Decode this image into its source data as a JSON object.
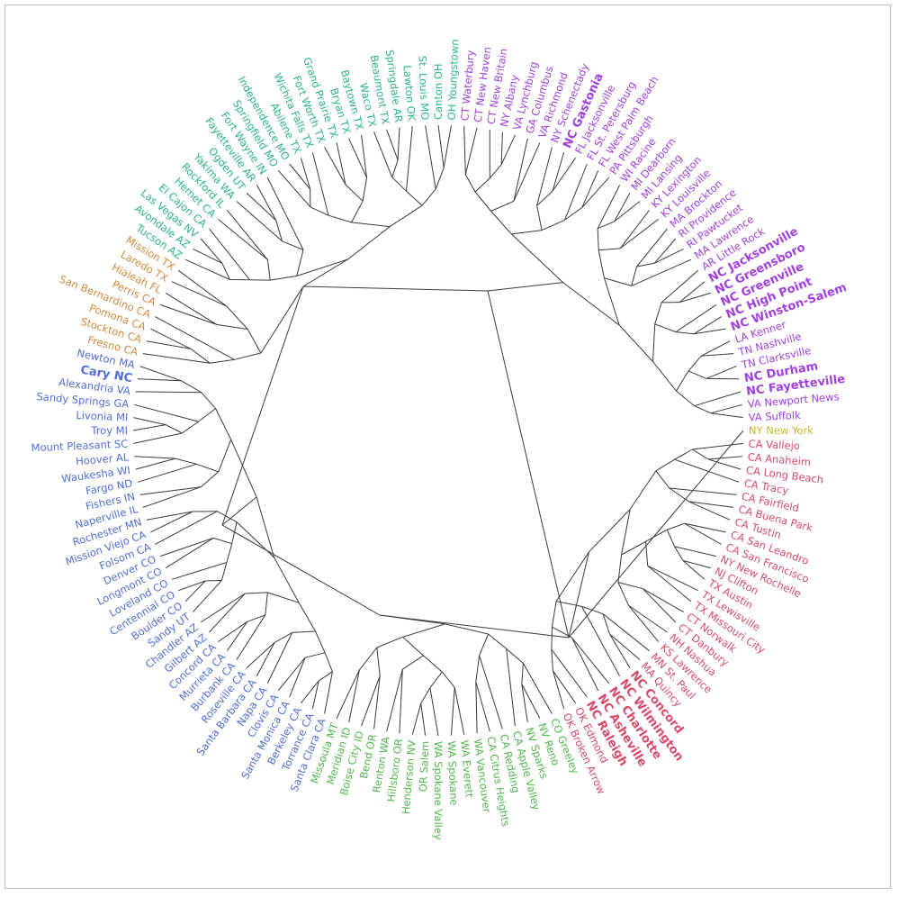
{
  "colors": {
    "teal": "#2bb38b",
    "purple": "#a23fe0",
    "crimson": "#d84a6a",
    "green": "#4fb84a",
    "blue": "#4f6fd6",
    "orange": "#d38a3c",
    "olive": "#c9b52c",
    "edge": "#3a3a3a",
    "border": "#bdbdbd"
  },
  "leaves": [
    {
      "label": "NY New York",
      "color": "olive",
      "bold": false
    },
    {
      "label": "CA Vallejo",
      "color": "crimson",
      "bold": false
    },
    {
      "label": "CA Anaheim",
      "color": "crimson",
      "bold": false
    },
    {
      "label": "CA Long Beach",
      "color": "crimson",
      "bold": false
    },
    {
      "label": "CA Tracy",
      "color": "crimson",
      "bold": false
    },
    {
      "label": "CA Fairfield",
      "color": "crimson",
      "bold": false
    },
    {
      "label": "CA Buena Park",
      "color": "crimson",
      "bold": false
    },
    {
      "label": "CA Tustin",
      "color": "crimson",
      "bold": false
    },
    {
      "label": "CA San Leandro",
      "color": "crimson",
      "bold": false
    },
    {
      "label": "CA San Francisco",
      "color": "crimson",
      "bold": false
    },
    {
      "label": "NY New Rochelle",
      "color": "crimson",
      "bold": false
    },
    {
      "label": "NJ Clifton",
      "color": "crimson",
      "bold": false
    },
    {
      "label": "TX Austin",
      "color": "crimson",
      "bold": false
    },
    {
      "label": "TX Lewisville",
      "color": "crimson",
      "bold": false
    },
    {
      "label": "TX Missouri City",
      "color": "crimson",
      "bold": false
    },
    {
      "label": "CT Norwalk",
      "color": "crimson",
      "bold": false
    },
    {
      "label": "CT Danbury",
      "color": "crimson",
      "bold": false
    },
    {
      "label": "NH Nashua",
      "color": "crimson",
      "bold": false
    },
    {
      "label": "KS Lawrence",
      "color": "crimson",
      "bold": false
    },
    {
      "label": "MN St. Paul",
      "color": "crimson",
      "bold": false
    },
    {
      "label": "MA Quincy",
      "color": "crimson",
      "bold": false
    },
    {
      "label": "NC Concord",
      "color": "crimson",
      "bold": true
    },
    {
      "label": "NC Wilmington",
      "color": "crimson",
      "bold": true
    },
    {
      "label": "NC Charlotte",
      "color": "crimson",
      "bold": true
    },
    {
      "label": "NC Asheville",
      "color": "crimson",
      "bold": true
    },
    {
      "label": "NC Raleigh",
      "color": "crimson",
      "bold": true
    },
    {
      "label": "OK Edmond",
      "color": "crimson",
      "bold": false
    },
    {
      "label": "OK Broken Arrow",
      "color": "crimson",
      "bold": false
    },
    {
      "label": "CO Greeley",
      "color": "green",
      "bold": false
    },
    {
      "label": "NV Reno",
      "color": "green",
      "bold": false
    },
    {
      "label": "NV Sparks",
      "color": "green",
      "bold": false
    },
    {
      "label": "CA Apple Valley",
      "color": "green",
      "bold": false
    },
    {
      "label": "CA Redding",
      "color": "green",
      "bold": false
    },
    {
      "label": "CA Citrus Heights",
      "color": "green",
      "bold": false
    },
    {
      "label": "WA Vancouver",
      "color": "green",
      "bold": false
    },
    {
      "label": "WA Everett",
      "color": "green",
      "bold": false
    },
    {
      "label": "WA Spokane",
      "color": "green",
      "bold": false
    },
    {
      "label": "WA Spokane Valley",
      "color": "green",
      "bold": false
    },
    {
      "label": "OR Salem",
      "color": "green",
      "bold": false
    },
    {
      "label": "Henderson NV",
      "color": "green",
      "bold": false
    },
    {
      "label": "Hillsboro OR",
      "color": "green",
      "bold": false
    },
    {
      "label": "Renton WA",
      "color": "green",
      "bold": false
    },
    {
      "label": "Bend OR",
      "color": "green",
      "bold": false
    },
    {
      "label": "Boise City ID",
      "color": "green",
      "bold": false
    },
    {
      "label": "Meridian ID",
      "color": "green",
      "bold": false
    },
    {
      "label": "Missoula MT",
      "color": "green",
      "bold": false
    },
    {
      "label": "Santa Clara CA",
      "color": "blue",
      "bold": false
    },
    {
      "label": "Torrance CA",
      "color": "blue",
      "bold": false
    },
    {
      "label": "Berkeley CA",
      "color": "blue",
      "bold": false
    },
    {
      "label": "Santa Monica CA",
      "color": "blue",
      "bold": false
    },
    {
      "label": "Clovis CA",
      "color": "blue",
      "bold": false
    },
    {
      "label": "Napa CA",
      "color": "blue",
      "bold": false
    },
    {
      "label": "Santa Barbara CA",
      "color": "blue",
      "bold": false
    },
    {
      "label": "Roseville CA",
      "color": "blue",
      "bold": false
    },
    {
      "label": "Burbank CA",
      "color": "blue",
      "bold": false
    },
    {
      "label": "Murrieta CA",
      "color": "blue",
      "bold": false
    },
    {
      "label": "Concord CA",
      "color": "blue",
      "bold": false
    },
    {
      "label": "Gilbert AZ",
      "color": "blue",
      "bold": false
    },
    {
      "label": "Chandler AZ",
      "color": "blue",
      "bold": false
    },
    {
      "label": "Sandy UT",
      "color": "blue",
      "bold": false
    },
    {
      "label": "Boulder CO",
      "color": "blue",
      "bold": false
    },
    {
      "label": "Centennial CO",
      "color": "blue",
      "bold": false
    },
    {
      "label": "Loveland CO",
      "color": "blue",
      "bold": false
    },
    {
      "label": "Longmont CO",
      "color": "blue",
      "bold": false
    },
    {
      "label": "Denver CO",
      "color": "blue",
      "bold": false
    },
    {
      "label": "Folsom CA",
      "color": "blue",
      "bold": false
    },
    {
      "label": "Mission Viejo CA",
      "color": "blue",
      "bold": false
    },
    {
      "label": "Rochester MN",
      "color": "blue",
      "bold": false
    },
    {
      "label": "Naperville IL",
      "color": "blue",
      "bold": false
    },
    {
      "label": "Fishers IN",
      "color": "blue",
      "bold": false
    },
    {
      "label": "Fargo ND",
      "color": "blue",
      "bold": false
    },
    {
      "label": "Waukesha WI",
      "color": "blue",
      "bold": false
    },
    {
      "label": "Hoover AL",
      "color": "blue",
      "bold": false
    },
    {
      "label": "Mount Pleasant SC",
      "color": "blue",
      "bold": false
    },
    {
      "label": "Troy MI",
      "color": "blue",
      "bold": false
    },
    {
      "label": "Livonia MI",
      "color": "blue",
      "bold": false
    },
    {
      "label": "Sandy Springs GA",
      "color": "blue",
      "bold": false
    },
    {
      "label": "Alexandria VA",
      "color": "blue",
      "bold": false
    },
    {
      "label": "Cary NC",
      "color": "blue",
      "bold": true
    },
    {
      "label": "Newton MA",
      "color": "blue",
      "bold": false
    },
    {
      "label": "Fresno CA",
      "color": "orange",
      "bold": false
    },
    {
      "label": "Stockton CA",
      "color": "orange",
      "bold": false
    },
    {
      "label": "Pomona CA",
      "color": "orange",
      "bold": false
    },
    {
      "label": "San Bernardino CA",
      "color": "orange",
      "bold": false
    },
    {
      "label": "Perris CA",
      "color": "orange",
      "bold": false
    },
    {
      "label": "Hialeah FL",
      "color": "orange",
      "bold": false
    },
    {
      "label": "Laredo TX",
      "color": "orange",
      "bold": false
    },
    {
      "label": "Mission TX",
      "color": "orange",
      "bold": false
    },
    {
      "label": "Tucson AZ",
      "color": "teal",
      "bold": false
    },
    {
      "label": "Avondale AZ",
      "color": "teal",
      "bold": false
    },
    {
      "label": "Las Vegas NV",
      "color": "teal",
      "bold": false
    },
    {
      "label": "El Cajon CA",
      "color": "teal",
      "bold": false
    },
    {
      "label": "Hemet CA",
      "color": "teal",
      "bold": false
    },
    {
      "label": "Rockford IL",
      "color": "teal",
      "bold": false
    },
    {
      "label": "Yakima WA",
      "color": "teal",
      "bold": false
    },
    {
      "label": "Ogden UT",
      "color": "teal",
      "bold": false
    },
    {
      "label": "Fayetteville AR",
      "color": "teal",
      "bold": false
    },
    {
      "label": "Fort Wayne IN",
      "color": "teal",
      "bold": false
    },
    {
      "label": "Springfield MO",
      "color": "teal",
      "bold": false
    },
    {
      "label": "Independence MO",
      "color": "teal",
      "bold": false
    },
    {
      "label": "Abilene TX",
      "color": "teal",
      "bold": false
    },
    {
      "label": "Wichita Falls TX",
      "color": "teal",
      "bold": false
    },
    {
      "label": "Fort Worth TX",
      "color": "teal",
      "bold": false
    },
    {
      "label": "Grand Prairie TX",
      "color": "teal",
      "bold": false
    },
    {
      "label": "Bryan TX",
      "color": "teal",
      "bold": false
    },
    {
      "label": "Baytown TX",
      "color": "teal",
      "bold": false
    },
    {
      "label": "Waco TX",
      "color": "teal",
      "bold": false
    },
    {
      "label": "Beaumont TX",
      "color": "teal",
      "bold": false
    },
    {
      "label": "Springdale AR",
      "color": "teal",
      "bold": false
    },
    {
      "label": "Lawton OK",
      "color": "teal",
      "bold": false
    },
    {
      "label": "St. Louis MO",
      "color": "teal",
      "bold": false
    },
    {
      "label": "Canton OH",
      "color": "teal",
      "bold": false
    },
    {
      "label": "OH Youngstown",
      "color": "teal",
      "bold": false
    },
    {
      "label": "CT Waterbury",
      "color": "purple",
      "bold": false
    },
    {
      "label": "CT New Haven",
      "color": "purple",
      "bold": false
    },
    {
      "label": "CT New Britain",
      "color": "purple",
      "bold": false
    },
    {
      "label": "NY Albany",
      "color": "purple",
      "bold": false
    },
    {
      "label": "VA Lynchburg",
      "color": "purple",
      "bold": false
    },
    {
      "label": "GA Columbus",
      "color": "purple",
      "bold": false
    },
    {
      "label": "VA Richmond",
      "color": "purple",
      "bold": false
    },
    {
      "label": "NY Schenectady",
      "color": "purple",
      "bold": false
    },
    {
      "label": "NC Gastonia",
      "color": "purple",
      "bold": true
    },
    {
      "label": "FL Jacksonville",
      "color": "purple",
      "bold": false
    },
    {
      "label": "FL St. Petersburg",
      "color": "purple",
      "bold": false
    },
    {
      "label": "FL West Palm Beach",
      "color": "purple",
      "bold": false
    },
    {
      "label": "PA Pittsburgh",
      "color": "purple",
      "bold": false
    },
    {
      "label": "WI Racine",
      "color": "purple",
      "bold": false
    },
    {
      "label": "MI Dearborn",
      "color": "purple",
      "bold": false
    },
    {
      "label": "MI Lansing",
      "color": "purple",
      "bold": false
    },
    {
      "label": "KY Lexington",
      "color": "purple",
      "bold": false
    },
    {
      "label": "KY Louisville",
      "color": "purple",
      "bold": false
    },
    {
      "label": "MA Brockton",
      "color": "purple",
      "bold": false
    },
    {
      "label": "RI Providence",
      "color": "purple",
      "bold": false
    },
    {
      "label": "RI Pawtucket",
      "color": "purple",
      "bold": false
    },
    {
      "label": "MA Lawrence",
      "color": "purple",
      "bold": false
    },
    {
      "label": "AR Little Rock",
      "color": "purple",
      "bold": false
    },
    {
      "label": "NC Jacksonville",
      "color": "purple",
      "bold": true
    },
    {
      "label": "NC Greensboro",
      "color": "purple",
      "bold": true
    },
    {
      "label": "NC Greenville",
      "color": "purple",
      "bold": true
    },
    {
      "label": "NC High Point",
      "color": "purple",
      "bold": true
    },
    {
      "label": "NC Winston-Salem",
      "color": "purple",
      "bold": true
    },
    {
      "label": "LA Kenner",
      "color": "purple",
      "bold": false
    },
    {
      "label": "TN Nashville",
      "color": "purple",
      "bold": false
    },
    {
      "label": "TN Clarksville",
      "color": "purple",
      "bold": false
    },
    {
      "label": "NC Durham",
      "color": "purple",
      "bold": true
    },
    {
      "label": "NC Fayetteville",
      "color": "purple",
      "bold": true
    },
    {
      "label": "VA Newport News",
      "color": "purple",
      "bold": false
    },
    {
      "label": "VA Suffolk",
      "color": "purple",
      "bold": false
    }
  ]
}
